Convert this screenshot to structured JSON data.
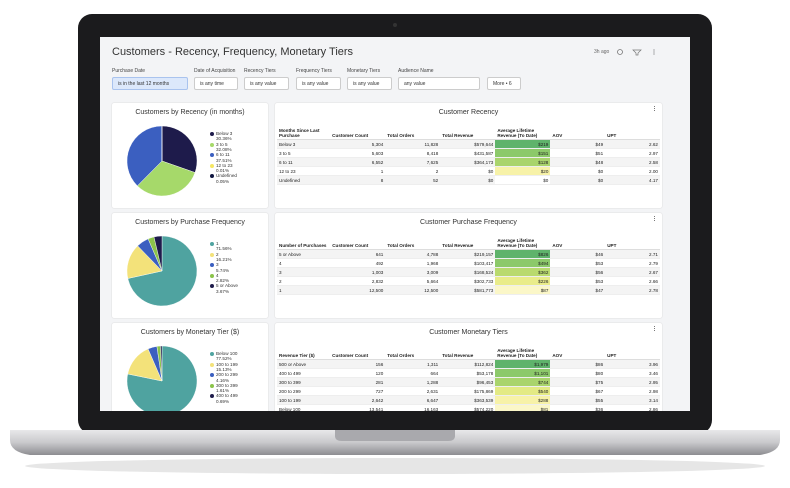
{
  "header": {
    "title": "Customers - Recency, Frequency, Monetary Tiers",
    "updated": "3h ago"
  },
  "filters": [
    {
      "label": "Purchase Date",
      "value": "is in the last 12 months"
    },
    {
      "label": "Date of Acquisition",
      "value": "is any time"
    },
    {
      "label": "Recency Tiers",
      "value": "is any value"
    },
    {
      "label": "Frequency Tiers",
      "value": "is any value"
    },
    {
      "label": "Monetary Tiers",
      "value": "is any value"
    },
    {
      "label": "Audience Name",
      "value": "any value"
    }
  ],
  "more": "More • 6",
  "panels": [
    {
      "pie": {
        "title": "Customers by Recency (in months)",
        "slices": [
          {
            "label": "Below 3",
            "value": 30.36,
            "value_label": "30.36%",
            "color": "#1e1b4b"
          },
          {
            "label": "3 to 5",
            "value": 32.08,
            "value_label": "32.08%",
            "color": "#a6d96a"
          },
          {
            "label": "6 to 11",
            "value": 37.51,
            "value_label": "37.51%",
            "color": "#3b5fc0"
          },
          {
            "label": "12 to 23",
            "value": 0.01,
            "value_label": "0.01%",
            "color": "#f5e663"
          },
          {
            "label": "Undefined",
            "value": 0.05,
            "value_label": "0.05%",
            "color": "#0f1640"
          }
        ]
      },
      "table": {
        "title": "Customer Recency",
        "columns": [
          "Months Since Last Purchase",
          "Customer Count",
          "Total Orders",
          "Total Revenue",
          "Average Lifetime Revenue (To Date)",
          "AOV",
          "UPT"
        ],
        "rows": [
          [
            "Below 3",
            "5,304",
            "11,828",
            "$579,644",
            "$219",
            "$49",
            "2.62"
          ],
          [
            "3 to 5",
            "5,603",
            "8,418",
            "$431,587",
            "$151",
            "$51",
            "2.97"
          ],
          [
            "6 to 11",
            "6,552",
            "7,625",
            "$364,173",
            "$128",
            "$48",
            "2.58"
          ],
          [
            "12 to 23",
            "1",
            "2",
            "$0",
            "$20",
            "$0",
            "2.00"
          ],
          [
            "Undefined",
            "8",
            "52",
            "$0",
            "$0",
            "$0",
            "4.17"
          ]
        ],
        "highlight": [
          "#5fb36b",
          "#8cc96a",
          "#a9d46c",
          "#f7f2a8",
          "#ffffff"
        ]
      }
    },
    {
      "pie": {
        "title": "Customers by Purchase Frequency",
        "slices": [
          {
            "label": "1",
            "value": 71.56,
            "value_label": "71.56%",
            "color": "#4fa3a0"
          },
          {
            "label": "2",
            "value": 16.21,
            "value_label": "16.21%",
            "color": "#f3e27a"
          },
          {
            "label": "3",
            "value": 5.74,
            "value_label": "5.74%",
            "color": "#3b5fc0"
          },
          {
            "label": "4",
            "value": 2.82,
            "value_label": "2.82%",
            "color": "#8bc34a"
          },
          {
            "label": "5 or Above",
            "value": 3.67,
            "value_label": "3.67%",
            "color": "#1e1b4b"
          }
        ]
      },
      "table": {
        "title": "Customer Purchase Frequency",
        "columns": [
          "Number of Purchases",
          "Customer Count",
          "Total Orders",
          "Total Revenue",
          "Average Lifetime Revenue (To Date)",
          "AOV",
          "UPT"
        ],
        "rows": [
          [
            "5 or Above",
            "641",
            "4,788",
            "$219,157",
            "$826",
            "$46",
            "2.71"
          ],
          [
            "4",
            "492",
            "1,968",
            "$103,417",
            "$494",
            "$53",
            "2.79"
          ],
          [
            "3",
            "1,003",
            "3,009",
            "$168,524",
            "$362",
            "$56",
            "2.67"
          ],
          [
            "2",
            "2,832",
            "5,664",
            "$302,733",
            "$226",
            "$53",
            "2.66"
          ],
          [
            "1",
            "12,500",
            "12,500",
            "$581,773",
            "$87",
            "$47",
            "2.78"
          ]
        ],
        "highlight": [
          "#5fb36b",
          "#8cc96a",
          "#b9da6e",
          "#e9ec8a",
          "#fbf7c8"
        ]
      }
    },
    {
      "pie": {
        "title": "Customers by Monetary Tier ($)",
        "slices": [
          {
            "label": "Below 100",
            "value": 77.52,
            "value_label": "77.52%",
            "color": "#4fa3a0"
          },
          {
            "label": "100 to 199",
            "value": 15.13,
            "value_label": "15.13%",
            "color": "#f3e27a"
          },
          {
            "label": "200 to 299",
            "value": 4.16,
            "value_label": "4.16%",
            "color": "#3b5fc0"
          },
          {
            "label": "300 to 399",
            "value": 1.61,
            "value_label": "1.61%",
            "color": "#8bc34a"
          },
          {
            "label": "400 to 499",
            "value": 0.69,
            "value_label": "0.69%",
            "color": "#1e1b4b"
          }
        ]
      },
      "table": {
        "title": "Customer Monetary Tiers",
        "columns": [
          "Revenue Tier ($)",
          "Customer Count",
          "Total Orders",
          "Total Revenue",
          "Average Lifetime Revenue (To Date)",
          "AOV",
          "UPT"
        ],
        "rows": [
          [
            "500 or Above",
            "156",
            "1,311",
            "$112,824",
            "$1,979",
            "$86",
            "3.96"
          ],
          [
            "400 to 499",
            "120",
            "664",
            "$53,178",
            "$1,101",
            "$80",
            "3.46"
          ],
          [
            "300 to 399",
            "281",
            "1,288",
            "$96,453",
            "$744",
            "$75",
            "2.95"
          ],
          [
            "200 to 299",
            "727",
            "2,631",
            "$175,869",
            "$540",
            "$67",
            "2.98"
          ],
          [
            "100 to 199",
            "2,642",
            "6,647",
            "$363,539",
            "$288",
            "$55",
            "3.14"
          ],
          [
            "Below 100",
            "13,541",
            "16,163",
            "$574,220",
            "$81",
            "$36",
            "2.86"
          ]
        ],
        "highlight": [
          "#5fb36b",
          "#8cc96a",
          "#a9d46c",
          "#e3ea84",
          "#f7f2a8",
          "#fbf7c8"
        ]
      }
    }
  ]
}
